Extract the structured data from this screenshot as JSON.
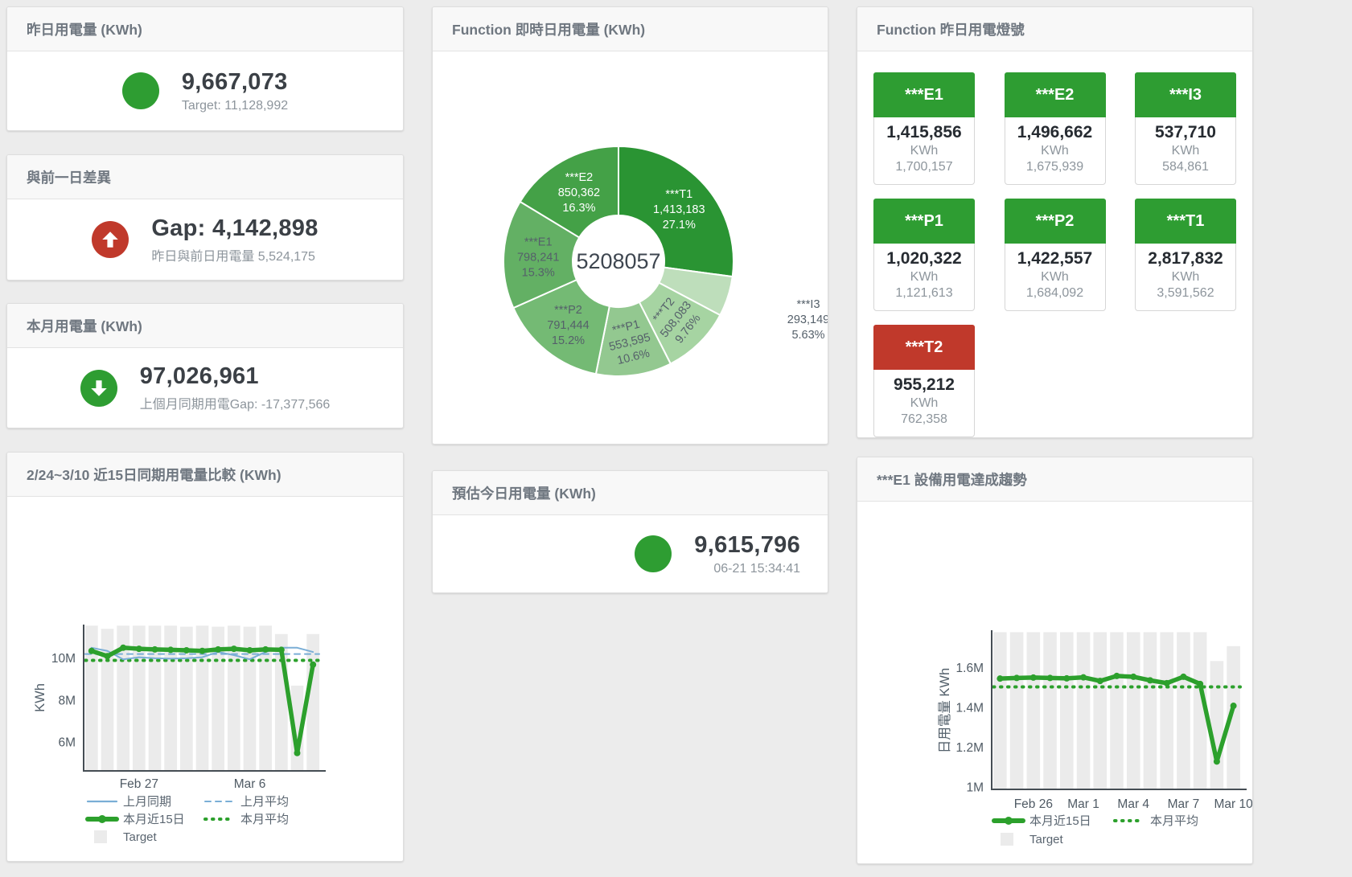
{
  "colors": {
    "green": "#2e9d32",
    "red": "#c0392b",
    "bar": "#ebebeb",
    "blue_line": "#7aaed6",
    "green_line": "#2ca02c",
    "axis": "#454d54",
    "tick_text": "#4f5a64",
    "legend_text": "#5a6570"
  },
  "panels": {
    "yesterday": {
      "title": "昨日用電量 (KWh)",
      "value": "9,667,073",
      "subtitle": "Target: 11,128,992",
      "status": "green"
    },
    "day_gap": {
      "title": "與前一日差異",
      "value": "Gap: 4,142,898",
      "subtitle": "昨日與前日用電量 5,524,175",
      "status": "red",
      "direction": "up"
    },
    "month": {
      "title": "本月用電量 (KWh)",
      "value": "97,026,961",
      "subtitle": "上個月同期用電Gap: -17,377,566",
      "status": "green",
      "direction": "down"
    },
    "estimate": {
      "title": "預估今日用電量 (KWh)",
      "value": "9,615,796",
      "subtitle": "06-21 15:34:41",
      "status": "green"
    },
    "donut": {
      "title": "Function 即時日用電量 (KWh)"
    },
    "lights": {
      "title": "Function 昨日用電燈號",
      "unit": "KWh",
      "tiles": [
        {
          "name": "***E1",
          "value": "1,415,856",
          "target": "1,700,157",
          "status": "green"
        },
        {
          "name": "***E2",
          "value": "1,496,662",
          "target": "1,675,939",
          "status": "green"
        },
        {
          "name": "***I3",
          "value": "537,710",
          "target": "584,861",
          "status": "green"
        },
        {
          "name": "***P1",
          "value": "1,020,322",
          "target": "1,121,613",
          "status": "green"
        },
        {
          "name": "***P2",
          "value": "1,422,557",
          "target": "1,684,092",
          "status": "green"
        },
        {
          "name": "***T1",
          "value": "2,817,832",
          "target": "3,591,562",
          "status": "green"
        },
        {
          "name": "***T2",
          "value": "955,212",
          "target": "762,358",
          "status": "red"
        }
      ]
    },
    "compare": {
      "title": "2/24~3/10 近15日同期用電量比較 (KWh)"
    },
    "trend": {
      "title": "***E1 設備用電達成趨勢"
    }
  },
  "chart_data": [
    {
      "type": "pie",
      "title": "Function 即時日用電量 (KWh)",
      "center_total": "5208057",
      "legend_position": "none",
      "slices": [
        {
          "name": "***T1",
          "value": 1413183,
          "label_value": "1,413,183",
          "pct": "27.1%",
          "color": "#2a9433",
          "label_color": "#ffffff"
        },
        {
          "name": "***I3",
          "value": 293149,
          "label_value": "293,149",
          "pct": "5.63%",
          "color": "#bedebb",
          "label_color": "#55606a",
          "outside": true
        },
        {
          "name": "***T2",
          "value": 508083,
          "label_value": "508,083",
          "pct": "9.76%",
          "color": "#a6d4a2",
          "label_color": "#55606a"
        },
        {
          "name": "***P1",
          "value": 553595,
          "label_value": "553,595",
          "pct": "10.6%",
          "color": "#93c890",
          "label_color": "#55606a"
        },
        {
          "name": "***P2",
          "value": 791444,
          "label_value": "791,444",
          "pct": "15.2%",
          "color": "#74ba74",
          "label_color": "#55606a"
        },
        {
          "name": "***E1",
          "value": 798241,
          "label_value": "798,241",
          "pct": "15.3%",
          "color": "#63b064",
          "label_color": "#55606a"
        },
        {
          "name": "***E2",
          "value": 850362,
          "label_value": "850,362",
          "pct": "16.3%",
          "color": "#44a147",
          "label_color": "#ffffff"
        }
      ]
    },
    {
      "type": "bar+line",
      "title": "2/24~3/10 近15日同期用電量比較 (KWh)",
      "ylabel": "KWh",
      "ylim": [
        4650000,
        11600000
      ],
      "grid": false,
      "yticks": [
        {
          "label": "6M",
          "value": 6000000
        },
        {
          "label": "8M",
          "value": 8000000
        },
        {
          "label": "10M",
          "value": 10000000
        }
      ],
      "xticks": [
        {
          "label": "Feb 27",
          "index": 3
        },
        {
          "label": "Mar 6",
          "index": 10
        }
      ],
      "x_count": 15,
      "series": [
        {
          "name": "Target",
          "type": "bar",
          "color": "#ebebeb",
          "values": [
            11550000,
            11400000,
            11550000,
            11550000,
            11550000,
            11550000,
            11500000,
            11550000,
            11500000,
            11550000,
            11500000,
            11550000,
            11150000,
            8700000,
            11150000
          ]
        },
        {
          "name": "上月同期",
          "type": "line",
          "dash": "solid",
          "width": 2,
          "color": "#7aaed6",
          "values": [
            10500000,
            10350000,
            9950000,
            10050000,
            10000000,
            9980000,
            10000000,
            10050000,
            10300000,
            10150000,
            9950000,
            10300000,
            10500000,
            10500000,
            10300000
          ]
        },
        {
          "name": "上月平均",
          "type": "hline",
          "dash": "dashed",
          "width": 2,
          "color": "#7aaed6",
          "value": 10200000
        },
        {
          "name": "本月近15日",
          "type": "line",
          "dash": "solid",
          "width": 5.5,
          "color": "#2ca02c",
          "markers": true,
          "values": [
            10350000,
            10100000,
            10500000,
            10450000,
            10420000,
            10400000,
            10380000,
            10350000,
            10420000,
            10450000,
            10380000,
            10420000,
            10400000,
            5500000,
            9700000
          ]
        },
        {
          "name": "本月平均",
          "type": "hline",
          "dash": "dotted",
          "width": 4,
          "color": "#2ca02c",
          "value": 9900000
        }
      ],
      "legend_rows": [
        [
          "上月同期",
          "上月平均"
        ],
        [
          "本月近15日",
          "本月平均"
        ],
        [
          "Target"
        ]
      ]
    },
    {
      "type": "bar+line",
      "title": "***E1 設備用電達成趨勢",
      "ylabel": "日用電量 KWh",
      "ylim": [
        990000,
        1790000
      ],
      "grid": false,
      "yticks": [
        {
          "label": "1M",
          "value": 1000000
        },
        {
          "label": "1.2M",
          "value": 1200000
        },
        {
          "label": "1.4M",
          "value": 1400000
        },
        {
          "label": "1.6M",
          "value": 1600000
        }
      ],
      "xticks": [
        {
          "label": "Feb 26",
          "index": 2
        },
        {
          "label": "Mar 1",
          "index": 5
        },
        {
          "label": "Mar 4",
          "index": 8
        },
        {
          "label": "Mar 7",
          "index": 11
        },
        {
          "label": "Mar 10",
          "index": 14
        }
      ],
      "x_count": 15,
      "series": [
        {
          "name": "Target",
          "type": "bar",
          "color": "#ebebeb",
          "values": [
            1780000,
            1780000,
            1780000,
            1780000,
            1780000,
            1780000,
            1780000,
            1780000,
            1780000,
            1780000,
            1780000,
            1780000,
            1780000,
            1635000,
            1710000
          ]
        },
        {
          "name": "本月近15日",
          "type": "line",
          "dash": "solid",
          "width": 5.5,
          "color": "#2ca02c",
          "markers": true,
          "values": [
            1547000,
            1550000,
            1552000,
            1550000,
            1548000,
            1553000,
            1535000,
            1560000,
            1556000,
            1538000,
            1524000,
            1556000,
            1520000,
            1130000,
            1410000
          ]
        },
        {
          "name": "本月平均",
          "type": "hline",
          "dash": "dotted",
          "width": 4,
          "color": "#2ca02c",
          "value": 1505000
        }
      ],
      "legend_rows": [
        [
          "本月近15日",
          "本月平均"
        ],
        [
          "Target"
        ]
      ]
    }
  ]
}
